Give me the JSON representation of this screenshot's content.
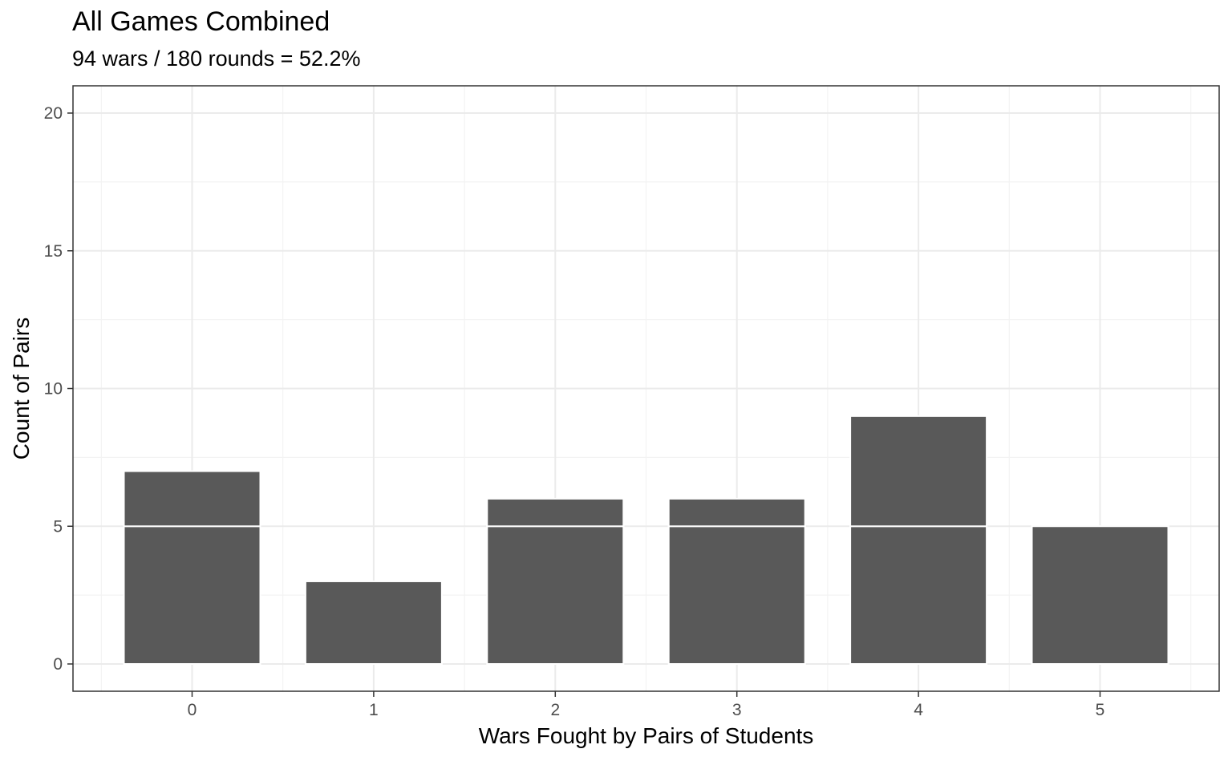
{
  "chart_data": {
    "type": "bar",
    "title": "All Games Combined",
    "subtitle": "94 wars / 180 rounds = 52.2%",
    "xlabel": "Wars Fought by Pairs of Students",
    "ylabel": "Count of Pairs",
    "categories": [
      "0",
      "1",
      "2",
      "3",
      "4",
      "5"
    ],
    "values": [
      7,
      3,
      6,
      6,
      9,
      5
    ],
    "segments": [
      [
        5,
        2
      ],
      [
        3
      ],
      [
        5,
        1
      ],
      [
        5,
        1
      ],
      [
        5,
        4
      ],
      [
        5
      ]
    ],
    "ylim": [
      0,
      20
    ],
    "yticks": [
      0,
      5,
      10,
      15,
      20
    ],
    "grid": true,
    "colors": {
      "bar": "#595959",
      "segment_border": "#ffffff",
      "grid_major": "#ebebeb",
      "grid_minor": "#f3f3f3",
      "panel_border": "#333333"
    }
  }
}
